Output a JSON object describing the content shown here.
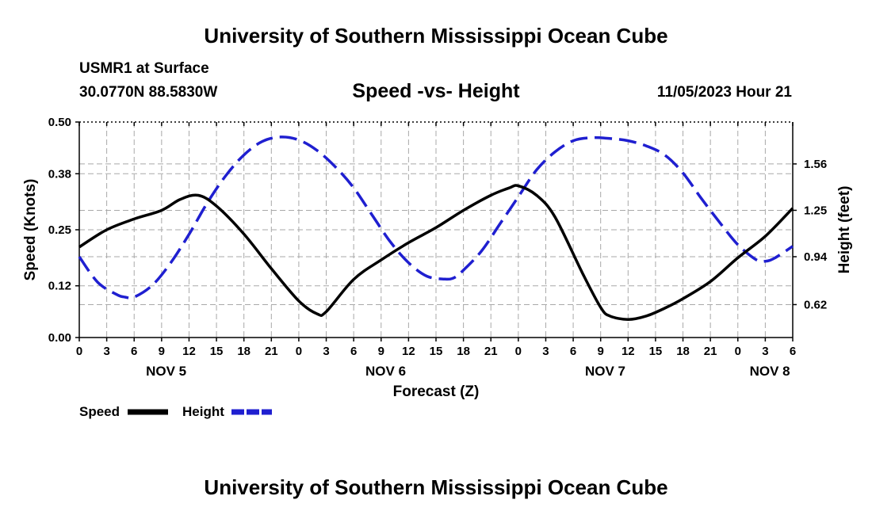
{
  "header": {
    "title": "University of Southern Mississippi Ocean Cube",
    "station": "USMR1 at Surface",
    "coords": "30.0770N  88.5830W",
    "datetime": "11/05/2023 Hour 21",
    "footer_title": "University of Southern Mississippi Ocean Cube"
  },
  "chart_data": {
    "type": "line",
    "title": "Speed -vs- Height",
    "xlabel": "Forecast (Z)",
    "ylabel_left": "Speed (Knots)",
    "ylabel_right": "Height (feet)",
    "x_unit": "hours from NOV 5 00Z",
    "xlim": [
      0,
      78
    ],
    "x_ticks": [
      0,
      3,
      6,
      9,
      12,
      15,
      18,
      21,
      24,
      27,
      30,
      33,
      36,
      39,
      42,
      45,
      48,
      51,
      54,
      57,
      60,
      63,
      66,
      69,
      72,
      75,
      78
    ],
    "x_tick_labels": [
      "0",
      "3",
      "6",
      "9",
      "12",
      "15",
      "18",
      "21",
      "0",
      "3",
      "6",
      "9",
      "12",
      "15",
      "18",
      "21",
      "0",
      "3",
      "6",
      "9",
      "12",
      "15",
      "18",
      "21",
      "0",
      "3",
      "6"
    ],
    "day_labels": [
      {
        "label": "NOV 5",
        "x": 9.5
      },
      {
        "label": "NOV 6",
        "x": 33.5
      },
      {
        "label": "NOV 7",
        "x": 57.5
      },
      {
        "label": "NOV 8",
        "x": 75.5
      }
    ],
    "ylim_left": [
      0,
      0.5
    ],
    "left_ticks": [
      0.0,
      0.12,
      0.25,
      0.38,
      0.5
    ],
    "left_tick_labels": [
      "0.00",
      "0.12",
      "0.25",
      "0.38",
      "0.50"
    ],
    "ylim_right": [
      0.4,
      1.84
    ],
    "right_ticks": [
      0.62,
      0.94,
      1.25,
      1.56
    ],
    "right_tick_labels": [
      "0.62",
      "0.94",
      "1.25",
      "1.56"
    ],
    "grid": true,
    "series": [
      {
        "name": "Speed",
        "axis": "left",
        "color": "#000000",
        "dashed": false,
        "x": [
          0,
          3,
          6,
          9,
          11,
          13,
          15,
          18,
          21,
          24,
          26,
          27,
          30,
          33,
          36,
          39,
          42,
          45,
          47,
          48,
          50,
          52,
          55,
          57,
          58,
          60,
          62,
          64,
          66,
          69,
          72,
          75,
          78
        ],
        "values": [
          0.21,
          0.25,
          0.275,
          0.295,
          0.32,
          0.33,
          0.305,
          0.24,
          0.16,
          0.085,
          0.055,
          0.06,
          0.135,
          0.18,
          0.22,
          0.255,
          0.295,
          0.33,
          0.347,
          0.352,
          0.33,
          0.28,
          0.15,
          0.07,
          0.05,
          0.042,
          0.05,
          0.068,
          0.09,
          0.13,
          0.185,
          0.235,
          0.3
        ]
      },
      {
        "name": "Height",
        "axis": "right",
        "color": "#1f1fd0",
        "dashed": true,
        "x": [
          0,
          2,
          4,
          5,
          6,
          8,
          10,
          12,
          14,
          16,
          18,
          20,
          22,
          24,
          26,
          28,
          30,
          32,
          34,
          36,
          38,
          40,
          41,
          42,
          44,
          46,
          48,
          50,
          52,
          54,
          56,
          58,
          60,
          62,
          64,
          66,
          68,
          70,
          72,
          74,
          75,
          76,
          78
        ],
        "values": [
          0.94,
          0.77,
          0.69,
          0.67,
          0.67,
          0.75,
          0.9,
          1.09,
          1.3,
          1.48,
          1.62,
          1.71,
          1.74,
          1.72,
          1.65,
          1.54,
          1.4,
          1.22,
          1.04,
          0.9,
          0.81,
          0.79,
          0.8,
          0.85,
          0.98,
          1.16,
          1.34,
          1.52,
          1.64,
          1.715,
          1.735,
          1.73,
          1.715,
          1.68,
          1.62,
          1.5,
          1.33,
          1.17,
          1.02,
          0.92,
          0.91,
          0.93,
          1.01
        ]
      }
    ]
  },
  "legend": {
    "speed_label": "Speed",
    "height_label": "Height",
    "speed_color": "#000000",
    "height_color": "#1f1fd0"
  }
}
